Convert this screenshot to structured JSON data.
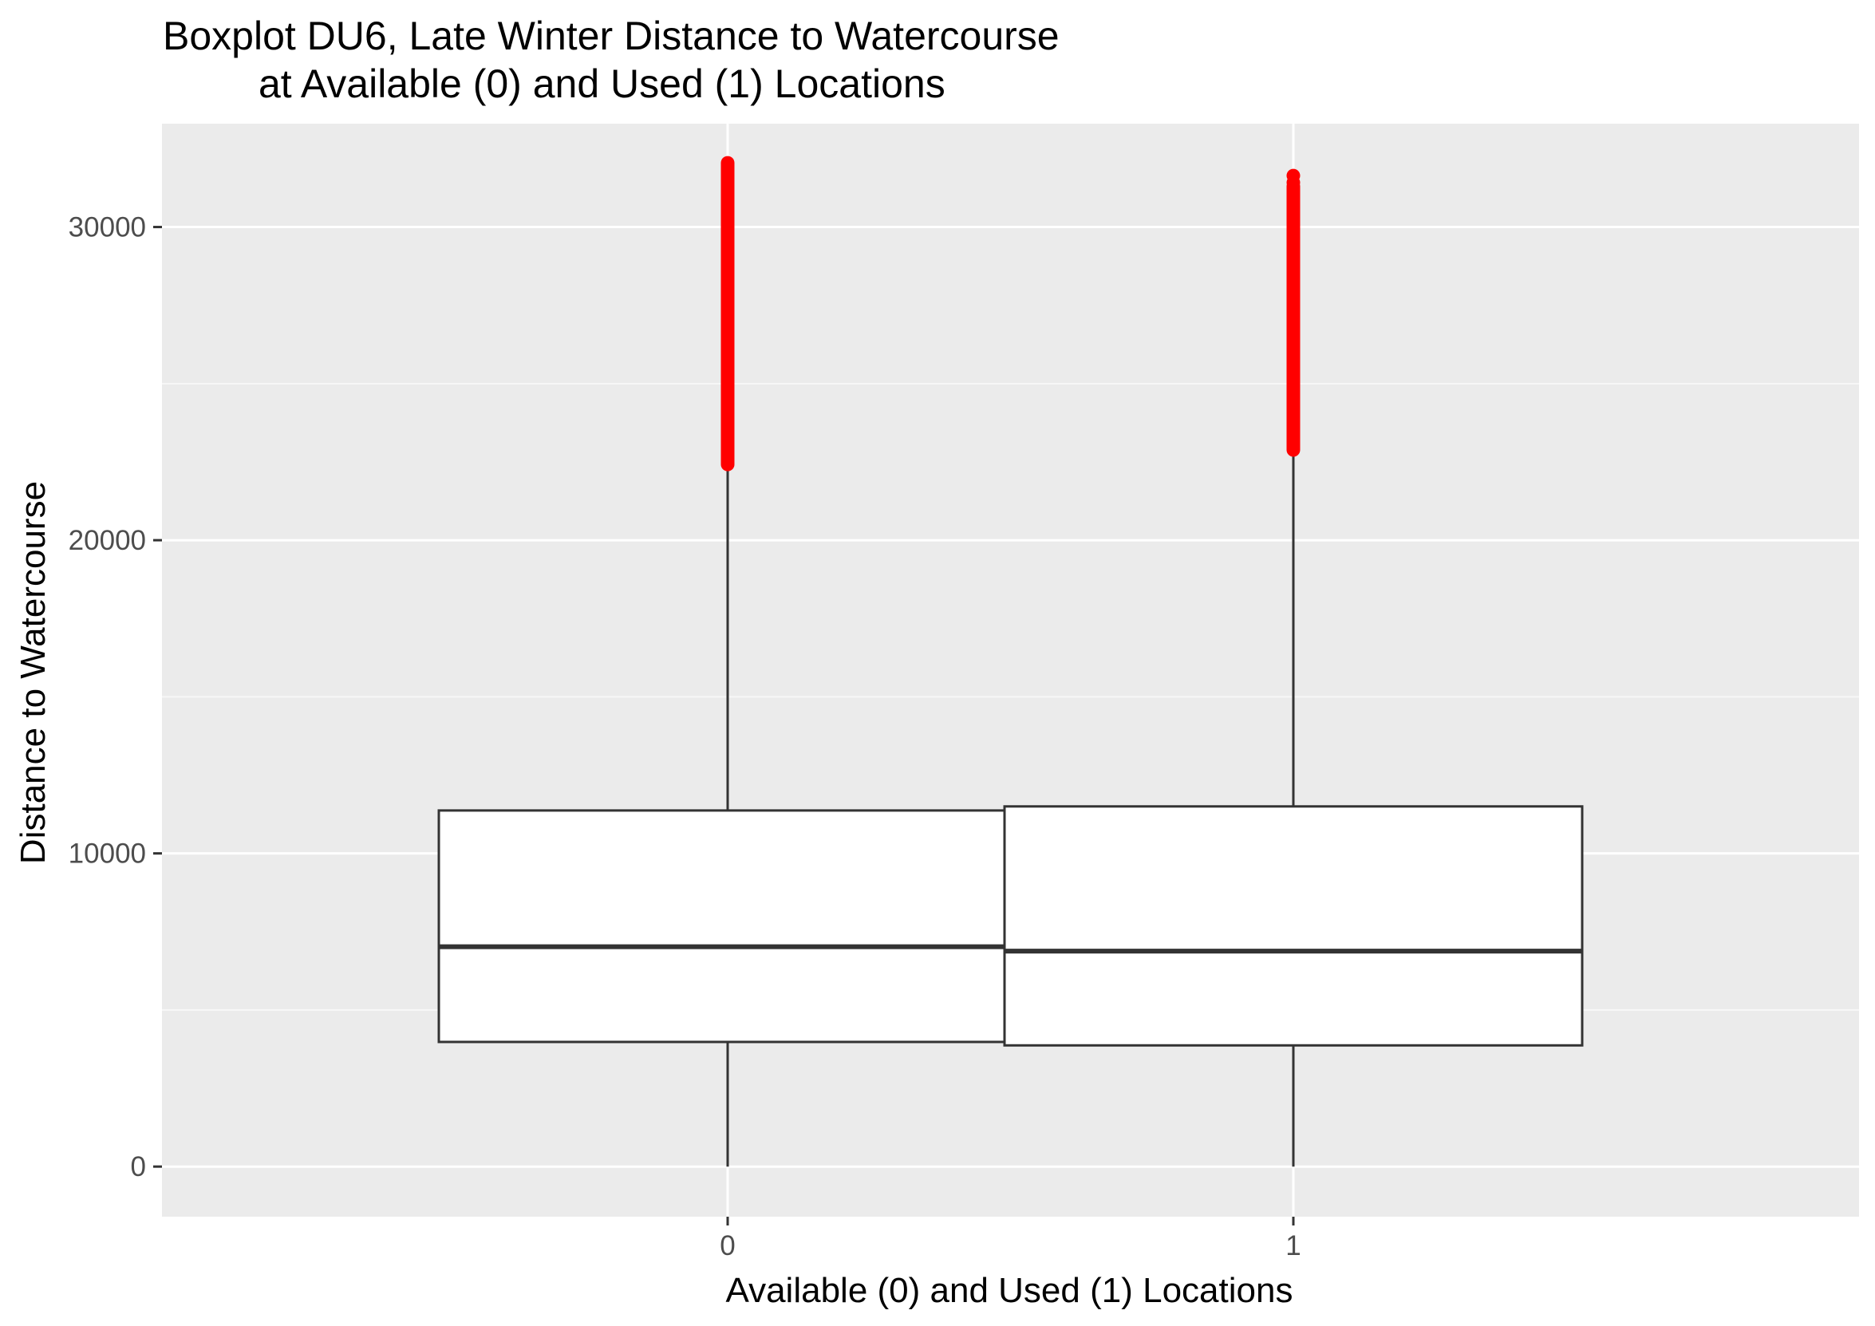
{
  "chart_data": {
    "type": "boxplot",
    "title": [
      "Boxplot DU6, Late Winter Distance to Watercourse",
      "at Available (0) and Used (1) Locations"
    ],
    "xlabel": "Available (0) and Used (1) Locations",
    "ylabel": "Distance to Watercourse",
    "categories": [
      "0",
      "1"
    ],
    "ylim": [
      -1600,
      33300
    ],
    "yticks": [
      0,
      10000,
      20000,
      30000
    ],
    "ytick_labels": [
      "0",
      "10000",
      "20000",
      "30000"
    ],
    "grid": true,
    "colors": {
      "panel_background": "#ebebeb",
      "grid_major": "#ffffff",
      "grid_minor": "#f7f7f7",
      "box_fill": "#ffffff",
      "box_line": "#333333",
      "outlier": "#ff0000"
    },
    "boxes": [
      {
        "category": "0",
        "min": 0,
        "q1": 3980,
        "median": 7020,
        "q3": 11370,
        "whisker_high": 22420,
        "outlier_range": [
          22420,
          32050
        ]
      },
      {
        "category": "1",
        "min": 0,
        "q1": 3870,
        "median": 6880,
        "q3": 11500,
        "whisker_high": 22880,
        "outlier_range": [
          22880,
          31300
        ],
        "outlier_points": [
          31640,
          31420
        ]
      }
    ]
  }
}
